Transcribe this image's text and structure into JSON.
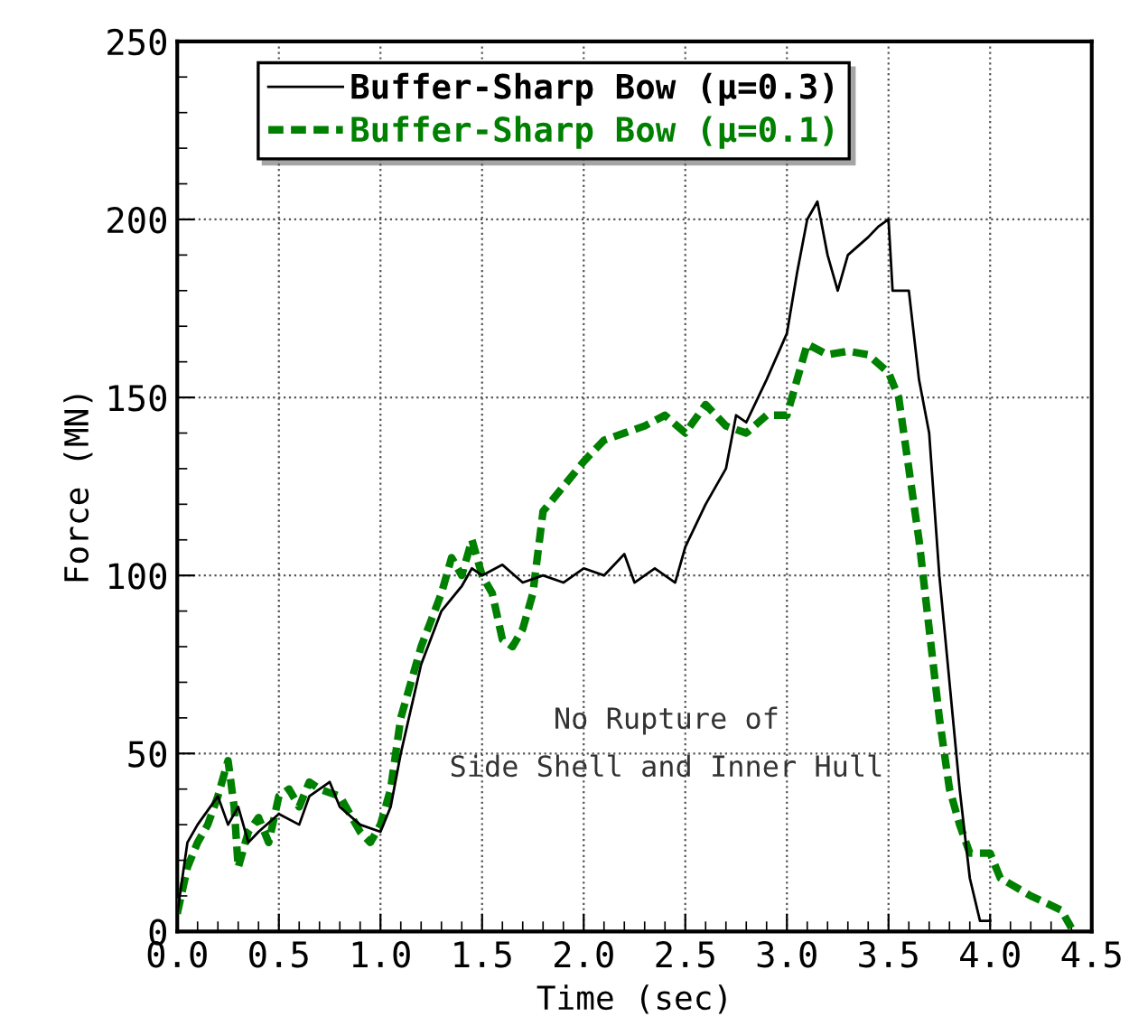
{
  "chart_data": {
    "type": "line",
    "xlabel": "Time (sec)",
    "ylabel": "Force (MN)",
    "xlim": [
      0,
      4.5
    ],
    "ylim": [
      0,
      250
    ],
    "xticks": [
      {
        "value": 0,
        "label": "0.0"
      },
      {
        "value": 0.5,
        "label": "0.5"
      },
      {
        "value": 1,
        "label": "1.0"
      },
      {
        "value": 1.5,
        "label": "1.5"
      },
      {
        "value": 2,
        "label": "2.0"
      },
      {
        "value": 2.5,
        "label": "2.5"
      },
      {
        "value": 3,
        "label": "3.0"
      },
      {
        "value": 3.5,
        "label": "3.5"
      },
      {
        "value": 4,
        "label": "4.0"
      },
      {
        "value": 4.5,
        "label": "4.5"
      }
    ],
    "yticks": [
      0,
      50,
      100,
      150,
      200,
      250
    ],
    "grid": true,
    "legend": "top left",
    "annotations": [
      "No Rupture of\nSide Shell and Inner Hull"
    ],
    "series": [
      {
        "name": "Buffer-Sharp Bow (μ=0.3)",
        "color": "#000000",
        "line_style": "solid",
        "x": [
          0,
          0.05,
          0.1,
          0.2,
          0.25,
          0.3,
          0.35,
          0.4,
          0.5,
          0.6,
          0.65,
          0.75,
          0.8,
          0.9,
          1.0,
          1.05,
          1.1,
          1.2,
          1.3,
          1.4,
          1.45,
          1.5,
          1.6,
          1.7,
          1.8,
          1.9,
          2.0,
          2.1,
          2.2,
          2.25,
          2.35,
          2.45,
          2.5,
          2.6,
          2.7,
          2.75,
          2.8,
          2.9,
          3.0,
          3.05,
          3.1,
          3.15,
          3.2,
          3.25,
          3.3,
          3.4,
          3.45,
          3.5,
          3.52,
          3.6,
          3.65,
          3.7,
          3.75,
          3.8,
          3.85,
          3.9,
          3.95,
          4.0
        ],
        "values": [
          5,
          25,
          30,
          38,
          30,
          35,
          25,
          28,
          33,
          30,
          38,
          42,
          35,
          30,
          28,
          35,
          50,
          75,
          90,
          97,
          102,
          100,
          103,
          98,
          100,
          98,
          102,
          100,
          106,
          98,
          102,
          98,
          108,
          120,
          130,
          145,
          143,
          155,
          168,
          185,
          200,
          205,
          190,
          180,
          190,
          195,
          198,
          200,
          180,
          180,
          155,
          140,
          100,
          70,
          40,
          15,
          3,
          3
        ]
      },
      {
        "name": "Buffer-Sharp Bow (μ=0.1)",
        "color": "#008000",
        "line_style": "dashed",
        "x": [
          0,
          0.05,
          0.1,
          0.15,
          0.2,
          0.25,
          0.28,
          0.3,
          0.35,
          0.4,
          0.45,
          0.5,
          0.55,
          0.6,
          0.65,
          0.7,
          0.8,
          0.9,
          0.95,
          1.0,
          1.05,
          1.1,
          1.2,
          1.3,
          1.35,
          1.4,
          1.45,
          1.5,
          1.55,
          1.6,
          1.65,
          1.7,
          1.75,
          1.8,
          1.9,
          2.0,
          2.1,
          2.2,
          2.3,
          2.4,
          2.5,
          2.6,
          2.7,
          2.8,
          2.9,
          3.0,
          3.05,
          3.1,
          3.2,
          3.3,
          3.4,
          3.5,
          3.55,
          3.6,
          3.65,
          3.7,
          3.75,
          3.8,
          3.85,
          3.9,
          4.0,
          4.05,
          4.2,
          4.35,
          4.4
        ],
        "values": [
          5,
          18,
          25,
          30,
          38,
          48,
          35,
          18,
          28,
          32,
          25,
          38,
          40,
          35,
          42,
          40,
          38,
          28,
          25,
          30,
          40,
          60,
          80,
          95,
          105,
          100,
          110,
          100,
          95,
          82,
          80,
          85,
          95,
          118,
          125,
          132,
          138,
          140,
          142,
          145,
          140,
          148,
          142,
          140,
          145,
          145,
          155,
          165,
          162,
          163,
          162,
          157,
          150,
          130,
          110,
          85,
          60,
          40,
          30,
          22,
          22,
          15,
          10,
          6,
          1
        ]
      }
    ]
  }
}
